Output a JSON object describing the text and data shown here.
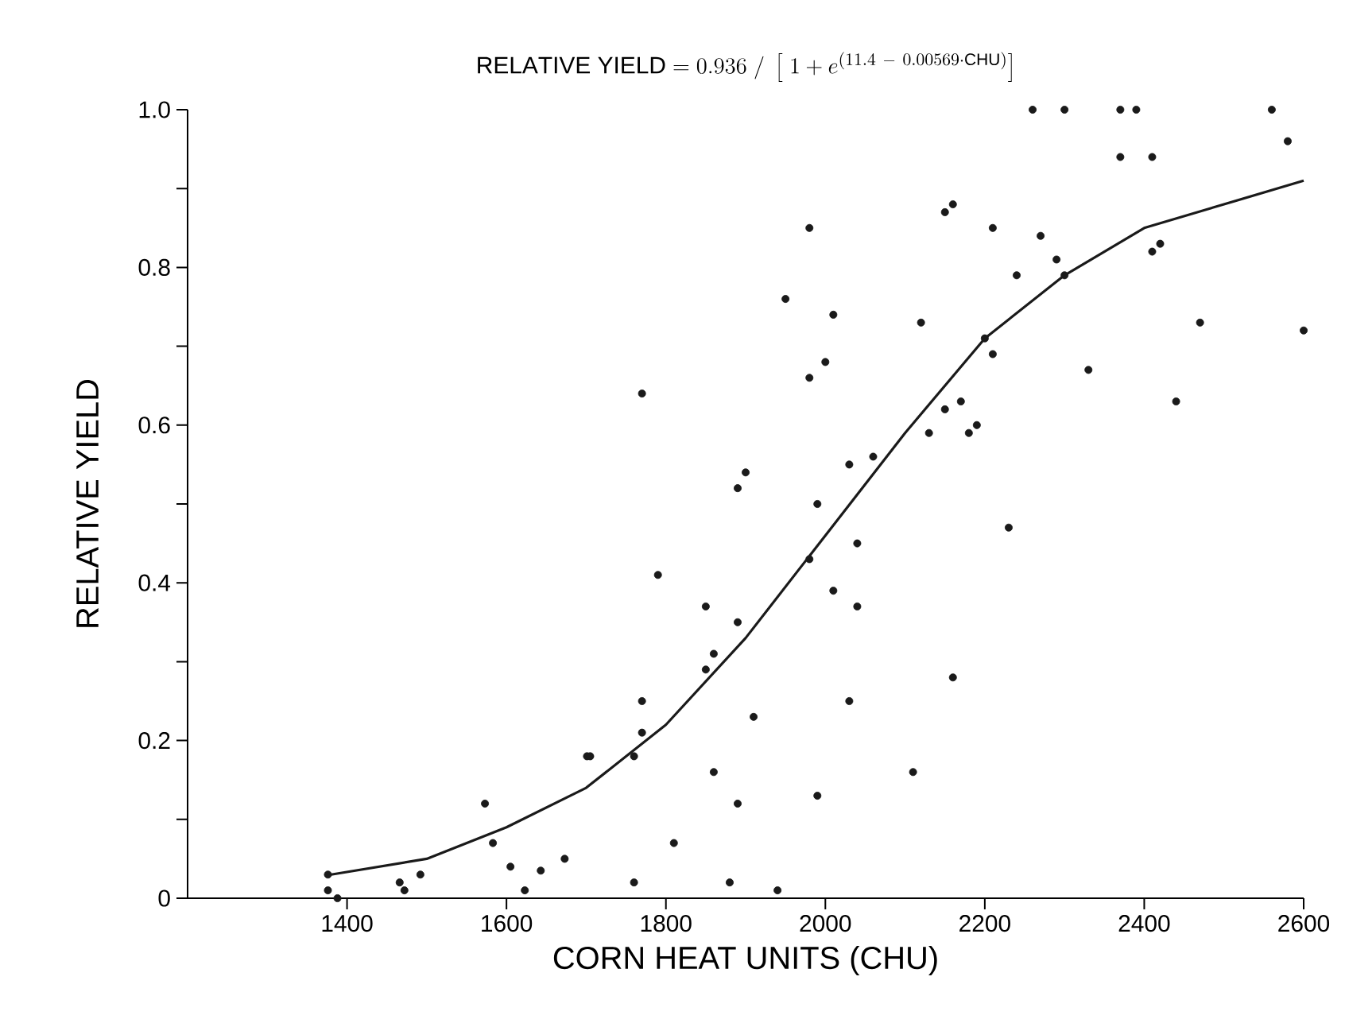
{
  "chart_data": {
    "type": "scatter",
    "title": "\\mathrm{RELATIVE\\ YIELD} = 0.936\\ /\\ \\left[\\ 1 + e^{(11.4\\ -\\ 0.00569\\cdot\\mathrm{CHU})}\\right]",
    "xlabel": "CORN HEAT UNITS (CHU)",
    "ylabel": "RELATIVE YIELD",
    "xlim": [
      1200,
      2600
    ],
    "xticks": [
      1400,
      1600,
      1800,
      2000,
      2200,
      2400,
      2600
    ],
    "ylim": [
      0,
      1
    ],
    "yticks": [
      0,
      {
        "value": 0.1,
        "label": null
      },
      0.2,
      {
        "value": 0.3,
        "label": null
      },
      0.4,
      {
        "value": 0.5,
        "label": null
      },
      0.6,
      {
        "value": 0.7,
        "label": null
      },
      0.8,
      {
        "value": 0.9,
        "label": null
      },
      {
        "value": 1,
        "label": "1.0"
      }
    ],
    "series": [
      {
        "type": "scatter",
        "marker": "circle",
        "color": "#1a1a1a",
        "x": [
          1376,
          1376,
          1388,
          1466,
          1472,
          1492,
          1573,
          1583,
          1605,
          1623,
          1643,
          1673,
          1701,
          1705,
          1760,
          1760,
          1770,
          1770,
          1770,
          1790,
          1810,
          1850,
          1850,
          1860,
          1860,
          1880,
          1890,
          1900,
          1890,
          1890,
          1910,
          1940,
          1950,
          1980,
          1980,
          1980,
          1990,
          2000,
          1990,
          2010,
          2010,
          2030,
          2030,
          2040,
          2040,
          2060,
          2110,
          2120,
          2130,
          2150,
          2160,
          2150,
          2160,
          2170,
          2180,
          2190,
          2200,
          2210,
          2210,
          2230,
          2240,
          2260,
          2270,
          2290,
          2300,
          2300,
          2330,
          2370,
          2370,
          2390,
          2410,
          2410,
          2420,
          2440,
          2470,
          2560,
          2580,
          2600
        ],
        "values": [
          0.03,
          0.01,
          0.0,
          0.02,
          0.01,
          0.03,
          0.12,
          0.07,
          0.04,
          0.01,
          0.035,
          0.05,
          0.18,
          0.18,
          0.02,
          0.18,
          0.21,
          0.25,
          0.64,
          0.41,
          0.07,
          0.37,
          0.29,
          0.31,
          0.16,
          0.02,
          0.52,
          0.54,
          0.35,
          0.12,
          0.23,
          0.01,
          0.76,
          0.85,
          0.66,
          0.43,
          0.5,
          0.68,
          0.13,
          0.74,
          0.39,
          0.55,
          0.25,
          0.45,
          0.37,
          0.56,
          0.16,
          0.73,
          0.59,
          0.87,
          0.88,
          0.62,
          0.28,
          0.63,
          0.59,
          0.6,
          0.71,
          0.85,
          0.69,
          0.47,
          0.79,
          1.0,
          0.84,
          0.81,
          1.0,
          0.79,
          0.67,
          1.0,
          0.94,
          1.0,
          0.94,
          0.82,
          0.83,
          0.63,
          0.73,
          1.0,
          0.96,
          0.72
        ]
      },
      {
        "type": "line",
        "color": "#1a1a1a",
        "line_style": "solid",
        "x": [
          1380,
          1500,
          1600,
          1700,
          1800,
          1900,
          2000,
          2100,
          2200,
          2300,
          2400,
          2500,
          2600
        ],
        "values": [
          0.03,
          0.05,
          0.09,
          0.14,
          0.22,
          0.33,
          0.46,
          0.59,
          0.71,
          0.79,
          0.85,
          0.88,
          0.91
        ]
      }
    ]
  }
}
